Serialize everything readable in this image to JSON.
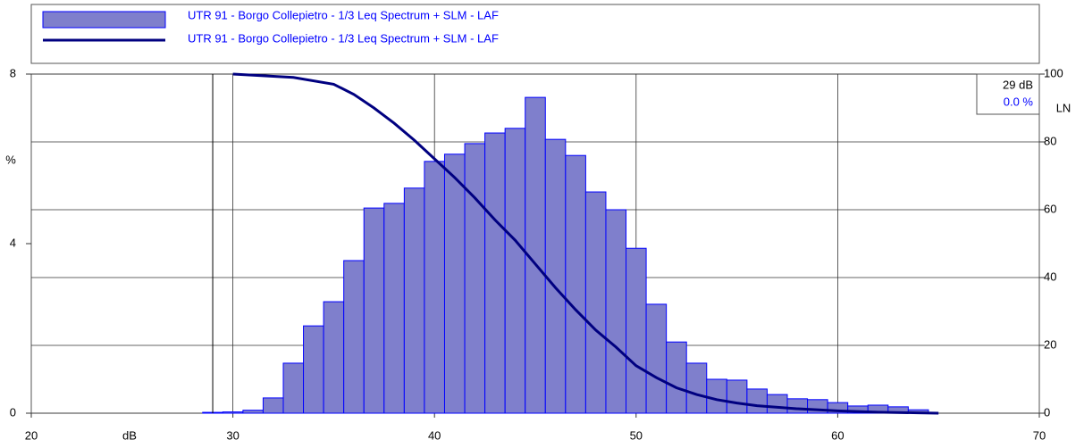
{
  "chart_data": {
    "type": "histogram",
    "legend": [
      "UTR 91 - Borgo Collepietro - 1/3 Leq Spectrum + SLM - LAF",
      "UTR 91 - Borgo Collepietro - 1/3 Leq Spectrum + SLM - LAF"
    ],
    "xlabel": "dB",
    "ylabel": "%",
    "y2label": "LN",
    "xlim": [
      20,
      70
    ],
    "xticks": [
      20,
      30,
      40,
      50,
      60,
      70
    ],
    "ylim": [
      0,
      8
    ],
    "yticks": [
      0,
      4,
      8
    ],
    "y2lim": [
      0,
      100
    ],
    "y2ticks": [
      0,
      20,
      40,
      60,
      80,
      100
    ],
    "grid": true,
    "bins": [
      28.5,
      29.5,
      30.5,
      31.5,
      32.5,
      33.5,
      34.5,
      35.5,
      36.5,
      37.5,
      38.5,
      39.5,
      40.5,
      41.5,
      42.5,
      43.5,
      44.5,
      45.5,
      46.5,
      47.5,
      48.5,
      49.5,
      50.5,
      51.5,
      52.5,
      53.5,
      54.5,
      55.5,
      56.5,
      57.5,
      58.5,
      59.5,
      60.5,
      61.5,
      62.5,
      63.5,
      64.5
    ],
    "values": [
      0.02,
      0.03,
      0.07,
      0.36,
      1.18,
      2.06,
      2.63,
      3.6,
      4.84,
      4.95,
      5.31,
      5.94,
      6.11,
      6.36,
      6.61,
      6.72,
      7.45,
      6.46,
      6.08,
      5.22,
      4.8,
      3.89,
      2.57,
      1.68,
      1.18,
      0.8,
      0.78,
      0.57,
      0.44,
      0.34,
      0.32,
      0.25,
      0.17,
      0.19,
      0.15,
      0.08
    ],
    "color": "#7f7fcc",
    "edge_color": "#0000ff",
    "line": {
      "axis": "y2",
      "color": "#000080",
      "x": [
        30,
        33,
        35,
        36,
        37,
        38,
        39,
        40,
        41,
        42,
        43,
        44,
        45,
        46,
        47,
        48,
        49,
        50,
        51,
        52,
        53,
        54,
        55,
        56,
        58,
        60,
        62,
        64,
        65
      ],
      "values": [
        100,
        99,
        97,
        94,
        90,
        85.5,
        80.5,
        75,
        69.5,
        63.5,
        57,
        51,
        44,
        37,
        30.5,
        24.5,
        19.5,
        14,
        10.5,
        7.5,
        5.5,
        4,
        3,
        2.2,
        1.3,
        0.7,
        0.3,
        0.1,
        0
      ]
    },
    "cursor": {
      "x": 29,
      "label": "29 dB",
      "percent_label": "0.0 %"
    }
  }
}
